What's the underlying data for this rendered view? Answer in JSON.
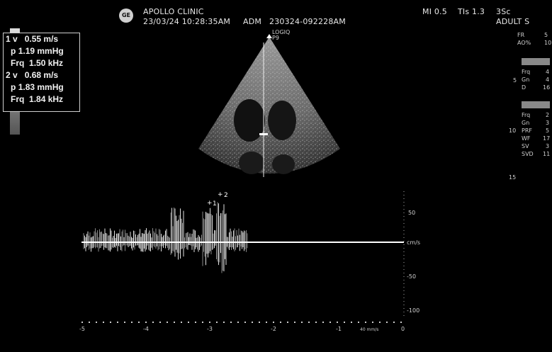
{
  "header": {
    "logo_text": "GE",
    "clinic": "APOLLO CLINIC",
    "datetime": "23/03/24 10:28:35AM",
    "adm": "ADM",
    "patient_id": "230324-092228AM",
    "mi": "MI 0.5",
    "tis": "TIs 1.3",
    "probe": "3Sc",
    "preset": "ADULT S"
  },
  "logiq": {
    "line1": "LOGIQ",
    "line2": "P9"
  },
  "measurements": [
    {
      "label": "1 v",
      "value": "0.55 m/s"
    },
    {
      "label": "p",
      "value": "1.19 mmHg"
    },
    {
      "label": "Frq",
      "value": "1.50 kHz"
    },
    {
      "label": "2 v",
      "value": "0.68 m/s"
    },
    {
      "label": "p",
      "value": "1.83 mmHg"
    },
    {
      "label": "Frq",
      "value": "1.84 kHz"
    }
  ],
  "right_panel": {
    "top_items": [
      {
        "k": "FR",
        "v": "5"
      },
      {
        "k": "AO%",
        "v": "10"
      }
    ],
    "cf_items": [
      {
        "k": "Frq",
        "v": "4"
      },
      {
        "k": "Gn",
        "v": "4"
      },
      {
        "k": "D",
        "v": "16"
      }
    ],
    "pw_items": [
      {
        "k": "Frq",
        "v": "2"
      },
      {
        "k": "Gn",
        "v": "3"
      },
      {
        "k": "PRF",
        "v": "5"
      },
      {
        "k": "WF",
        "v": "17"
      },
      {
        "k": "SV",
        "v": "3"
      },
      {
        "k": "SVD",
        "v": "11"
      }
    ],
    "depth_marks": [
      "5",
      "10",
      "15"
    ]
  },
  "doppler": {
    "y_ticks": [
      "50",
      "cm/s",
      "-50",
      "-100"
    ],
    "x_ticks": [
      "-5",
      "-4",
      "-3",
      "-2",
      "-1",
      "0"
    ],
    "sweep": "40 mm/s",
    "markers": [
      "1",
      "2"
    ]
  }
}
